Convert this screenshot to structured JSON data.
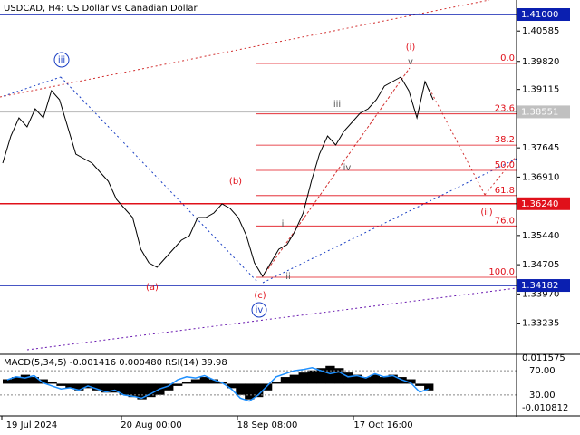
{
  "chart_data": [
    {
      "type": "line",
      "title": "USDCAD, H4:  US Dollar vs Canadian Dollar",
      "color": "#000000",
      "values": [
        1.37261,
        1.37945,
        1.38401,
        1.38173,
        1.38629,
        1.38401,
        1.39085,
        1.38857,
        1.38173,
        1.37489,
        1.37375,
        1.37261,
        1.37033,
        1.36805,
        1.36349,
        1.36121,
        1.35893,
        1.35095,
        1.34753,
        1.34639,
        1.34867,
        1.35095,
        1.35323,
        1.35437,
        1.35893,
        1.35893,
        1.36007,
        1.36235,
        1.36121,
        1.35893,
        1.35437,
        1.34753,
        1.34411,
        1.34753,
        1.35095,
        1.35209,
        1.35551,
        1.36007,
        1.36805,
        1.37489,
        1.37945,
        1.37717,
        1.38059,
        1.38287,
        1.38515,
        1.38629,
        1.38857,
        1.39199,
        1.39313,
        1.39427,
        1.39085,
        1.38401,
        1.39313,
        1.38857
      ],
      "ylim": [
        1.32473,
        1.41365
      ],
      "yticks": [
        1.40585,
        {
          "value": 1.3982,
          "label": "1.39820"
        },
        1.39115,
        1.37645,
        {
          "value": 1.3691,
          "label": "1.36910"
        },
        {
          "value": 1.3544,
          "label": "1.35440"
        },
        1.34705,
        {
          "value": 1.3397,
          "label": "1.33970"
        },
        1.33235
      ],
      "hlines": [
        {
          "value": 1.41,
          "label": "1.41000",
          "color": "#0a1fb0"
        },
        {
          "value": 1.38551,
          "color": "#c0c0c0"
        },
        {
          "value": 1.3624,
          "label": "1.36240",
          "color": "#e0101a"
        },
        {
          "value": 1.34182,
          "color": "#0a1fb0"
        }
      ],
      "fib": {
        "high": 1.39769,
        "low": 1.34389,
        "color": "#e0101a",
        "levels": [
          {
            "value": 0,
            "label": "0.0"
          },
          23.6,
          38.2,
          {
            "value": 50,
            "label": "50.0"
          },
          61.8,
          {
            "value": 76,
            "label": "76.0"
          },
          {
            "value": 100,
            "label": "100.0"
          }
        ]
      },
      "annotations": [
        {
          "text": "(i)",
          "color": "#e0101a"
        },
        {
          "text": "v",
          "color": "#555555"
        },
        {
          "text": "iii",
          "color": "#555555"
        },
        {
          "text": "iv",
          "color": "#555555"
        },
        {
          "text": "(ii)",
          "color": "#e0101a"
        },
        {
          "text": "(b)",
          "color": "#e0101a"
        },
        {
          "text": "(a)",
          "color": "#e0101a"
        },
        {
          "text": "(c)",
          "color": "#e0101a"
        },
        {
          "text": "iv",
          "color": "#1a3fc4",
          "style": "circle"
        },
        {
          "text": "iii",
          "color": "#1a3fc4",
          "style": "circle"
        },
        {
          "text": "i",
          "color": "#555555"
        },
        {
          "text": "ii",
          "color": "#555555"
        }
      ],
      "x_labels": [
        "19 Jul 2024",
        "20 Aug 00:00",
        "18 Sep 08:00",
        "17 Oct 16:00"
      ]
    },
    {
      "type": "bar",
      "title": "MACD(5,34,5) -0.001416 0.000480 RSI(14) 39.98",
      "color": "#000000",
      "values": [
        0.002,
        0.003,
        0.004,
        0.003,
        0.002,
        0.001,
        -0.001,
        -0.002,
        -0.003,
        -0.002,
        -0.003,
        -0.004,
        -0.004,
        -0.005,
        -0.006,
        -0.007,
        -0.006,
        -0.005,
        -0.003,
        -0.001,
        0.001,
        0.002,
        0.003,
        0.002,
        0.001,
        -0.002,
        -0.005,
        -0.007,
        -0.006,
        -0.003,
        0.001,
        0.003,
        0.004,
        0.005,
        0.006,
        0.007,
        0.008,
        0.007,
        0.005,
        0.004,
        0.003,
        0.004,
        0.003,
        0.004,
        0.003,
        0.002,
        -0.001,
        -0.003
      ],
      "ylim": [
        -0.010812,
        0.011575
      ],
      "rsi": {
        "color": "#1e90ff",
        "values": [
          55,
          60,
          58,
          62,
          50,
          45,
          40,
          42,
          38,
          45,
          40,
          35,
          38,
          30,
          28,
          25,
          32,
          40,
          45,
          55,
          60,
          58,
          62,
          55,
          50,
          40,
          25,
          20,
          30,
          45,
          60,
          65,
          70,
          72,
          75,
          70,
          65,
          68,
          60,
          62,
          58,
          65,
          60,
          62,
          55,
          50,
          35,
          40
        ],
        "ylim": [
          0,
          100
        ],
        "yticks": [
          {
            "value": 70,
            "label": "70.00"
          },
          {
            "value": 30,
            "label": "30.00"
          }
        ]
      }
    }
  ]
}
